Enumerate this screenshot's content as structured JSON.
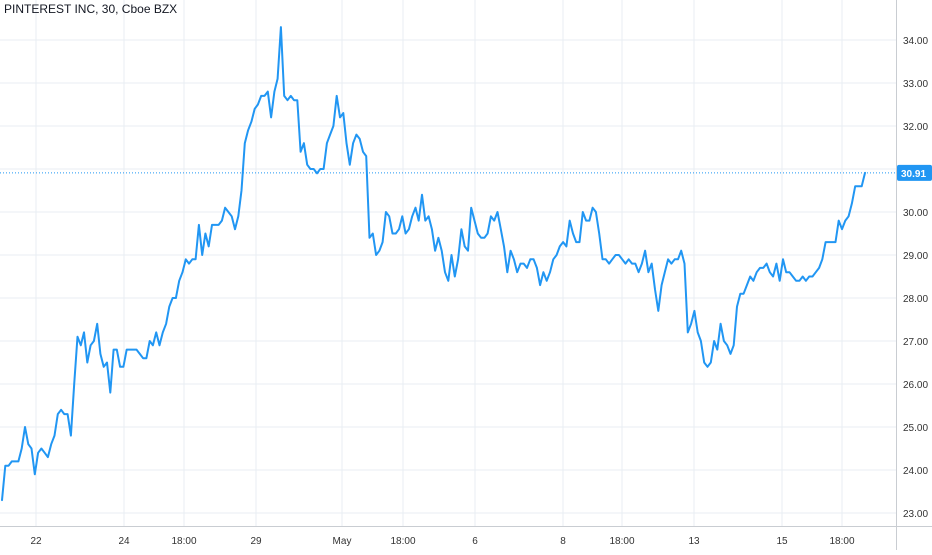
{
  "chart_title": "PINTEREST INC, 30, Cboe BZX",
  "colors": {
    "line": "#2196f3",
    "grid": "#e9eef3",
    "axis_text": "#333333",
    "price_label_bg": "#2196f3",
    "price_label_text": "#ffffff",
    "price_line": "#2196f3"
  },
  "chart_data": {
    "type": "line",
    "title": "PINTEREST INC, 30, Cboe BZX",
    "xlabel": "",
    "ylabel": "",
    "ylim": [
      22.9,
      34.9
    ],
    "grid": true,
    "legend": "none",
    "x_tick_labels": [
      "22",
      "24",
      "18:00",
      "29",
      "May",
      "18:00",
      "6",
      "8",
      "18:00",
      "13",
      "15",
      "18:00"
    ],
    "y_tick_labels": [
      "23.00",
      "24.00",
      "25.00",
      "26.00",
      "27.00",
      "28.00",
      "29.00",
      "30.00",
      "31.00",
      "32.00",
      "33.00",
      "34.00"
    ],
    "y_ticks": [
      23,
      24,
      25,
      26,
      27,
      28,
      29,
      30,
      31,
      32,
      33,
      34
    ],
    "last_price": 30.91,
    "last_price_label": "30.91",
    "series": [
      {
        "values": [
          23.3,
          24.1,
          24.1,
          24.2,
          24.2,
          24.2,
          24.5,
          25.0,
          24.6,
          24.5,
          23.9,
          24.4,
          24.5,
          24.4,
          24.3,
          24.6,
          24.8,
          25.3,
          25.4,
          25.3,
          25.3,
          24.8,
          26.0,
          27.1,
          26.9,
          27.2,
          26.5,
          26.9,
          27.0,
          27.4,
          26.7,
          26.4,
          26.5,
          25.8,
          26.8,
          26.8,
          26.4,
          26.4,
          26.8,
          26.8,
          26.8,
          26.8,
          26.7,
          26.6,
          26.6,
          27.0,
          26.9,
          27.2,
          26.9,
          27.2,
          27.4,
          27.8,
          28.0,
          28.0,
          28.4,
          28.6,
          28.9,
          28.8,
          28.9,
          28.9,
          29.7,
          29.0,
          29.5,
          29.2,
          29.7,
          29.7,
          29.7,
          29.8,
          30.1,
          30.0,
          29.9,
          29.6,
          29.9,
          30.5,
          31.6,
          31.9,
          32.1,
          32.4,
          32.5,
          32.7,
          32.7,
          32.8,
          32.2,
          32.8,
          33.1,
          34.3,
          32.7,
          32.6,
          32.7,
          32.6,
          32.6,
          31.4,
          31.6,
          31.1,
          31.0,
          31.0,
          30.9,
          31.0,
          31.0,
          31.6,
          31.8,
          32.0,
          32.7,
          32.2,
          32.3,
          31.6,
          31.1,
          31.6,
          31.8,
          31.7,
          31.4,
          31.3,
          29.4,
          29.5,
          29.0,
          29.1,
          29.3,
          30.0,
          29.9,
          29.5,
          29.5,
          29.6,
          29.9,
          29.5,
          29.6,
          29.9,
          30.1,
          29.8,
          30.4,
          29.8,
          29.9,
          29.6,
          29.1,
          29.4,
          29.1,
          28.6,
          28.4,
          29.0,
          28.5,
          28.9,
          29.6,
          29.2,
          29.1,
          30.1,
          29.8,
          29.5,
          29.4,
          29.4,
          29.5,
          29.9,
          29.8,
          30.0,
          29.6,
          29.2,
          28.6,
          29.1,
          28.9,
          28.6,
          28.8,
          28.8,
          28.7,
          28.9,
          28.9,
          28.7,
          28.3,
          28.6,
          28.4,
          28.6,
          28.9,
          29.0,
          29.2,
          29.3,
          29.2,
          29.8,
          29.5,
          29.3,
          29.3,
          30.0,
          29.8,
          29.8,
          30.1,
          30.0,
          29.5,
          28.9,
          28.9,
          28.8,
          28.9,
          29.0,
          29.0,
          28.9,
          28.8,
          28.9,
          28.8,
          28.8,
          28.6,
          28.8,
          29.1,
          28.6,
          28.8,
          28.2,
          27.7,
          28.3,
          28.6,
          28.9,
          28.8,
          28.9,
          28.9,
          29.1,
          28.8,
          27.2,
          27.4,
          27.7,
          27.2,
          27.0,
          26.5,
          26.4,
          26.5,
          27.0,
          26.8,
          27.4,
          27.0,
          26.9,
          26.7,
          26.9,
          27.8,
          28.1,
          28.1,
          28.3,
          28.5,
          28.4,
          28.6,
          28.7,
          28.7,
          28.8,
          28.6,
          28.5,
          28.8,
          28.4,
          28.9,
          28.6,
          28.6,
          28.5,
          28.4,
          28.4,
          28.5,
          28.4,
          28.5,
          28.5,
          28.6,
          28.7,
          28.9,
          29.3,
          29.3,
          29.3,
          29.3,
          29.8,
          29.6,
          29.8,
          29.9,
          30.2,
          30.6,
          30.6,
          30.6,
          30.91
        ]
      }
    ]
  }
}
